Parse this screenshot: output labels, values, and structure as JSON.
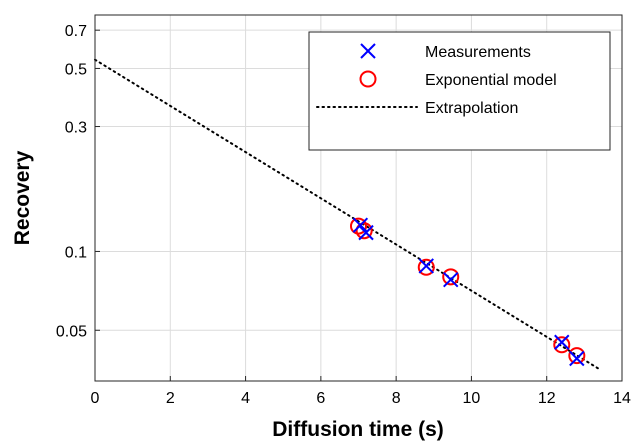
{
  "chart_data": {
    "type": "scatter",
    "xlabel": "Diffusion time (s)",
    "ylabel": "Recovery",
    "xlim": [
      0,
      14
    ],
    "ylim": [
      0.032,
      0.8
    ],
    "y_scale": "log",
    "x_ticks": [
      0,
      2,
      4,
      6,
      8,
      10,
      12,
      14
    ],
    "y_ticks": [
      0.05,
      0.1,
      0.3,
      0.5,
      0.7
    ],
    "y_tick_labels": [
      "0.05",
      "0.1",
      "0.3",
      "0.5",
      "0.7"
    ],
    "grid": true,
    "legend_position": "top-right",
    "series": [
      {
        "name": "Measurements",
        "marker": "x",
        "color": "#0000ff",
        "points": [
          {
            "x": 7.05,
            "y": 0.126
          },
          {
            "x": 7.2,
            "y": 0.118
          },
          {
            "x": 8.8,
            "y": 0.088
          },
          {
            "x": 9.45,
            "y": 0.078
          },
          {
            "x": 12.4,
            "y": 0.045
          },
          {
            "x": 12.8,
            "y": 0.039
          }
        ]
      },
      {
        "name": "Exponential model",
        "marker": "o",
        "color": "#ff0000",
        "points": [
          {
            "x": 7.0,
            "y": 0.125
          },
          {
            "x": 7.15,
            "y": 0.12
          },
          {
            "x": 8.8,
            "y": 0.087
          },
          {
            "x": 9.45,
            "y": 0.08
          },
          {
            "x": 12.4,
            "y": 0.044
          },
          {
            "x": 12.8,
            "y": 0.04
          }
        ]
      },
      {
        "name": "Extrapolation",
        "style": "dotted",
        "color": "#000000",
        "points": [
          {
            "x": 0,
            "y": 0.54
          },
          {
            "x": 13.4,
            "y": 0.0355
          }
        ]
      }
    ]
  }
}
